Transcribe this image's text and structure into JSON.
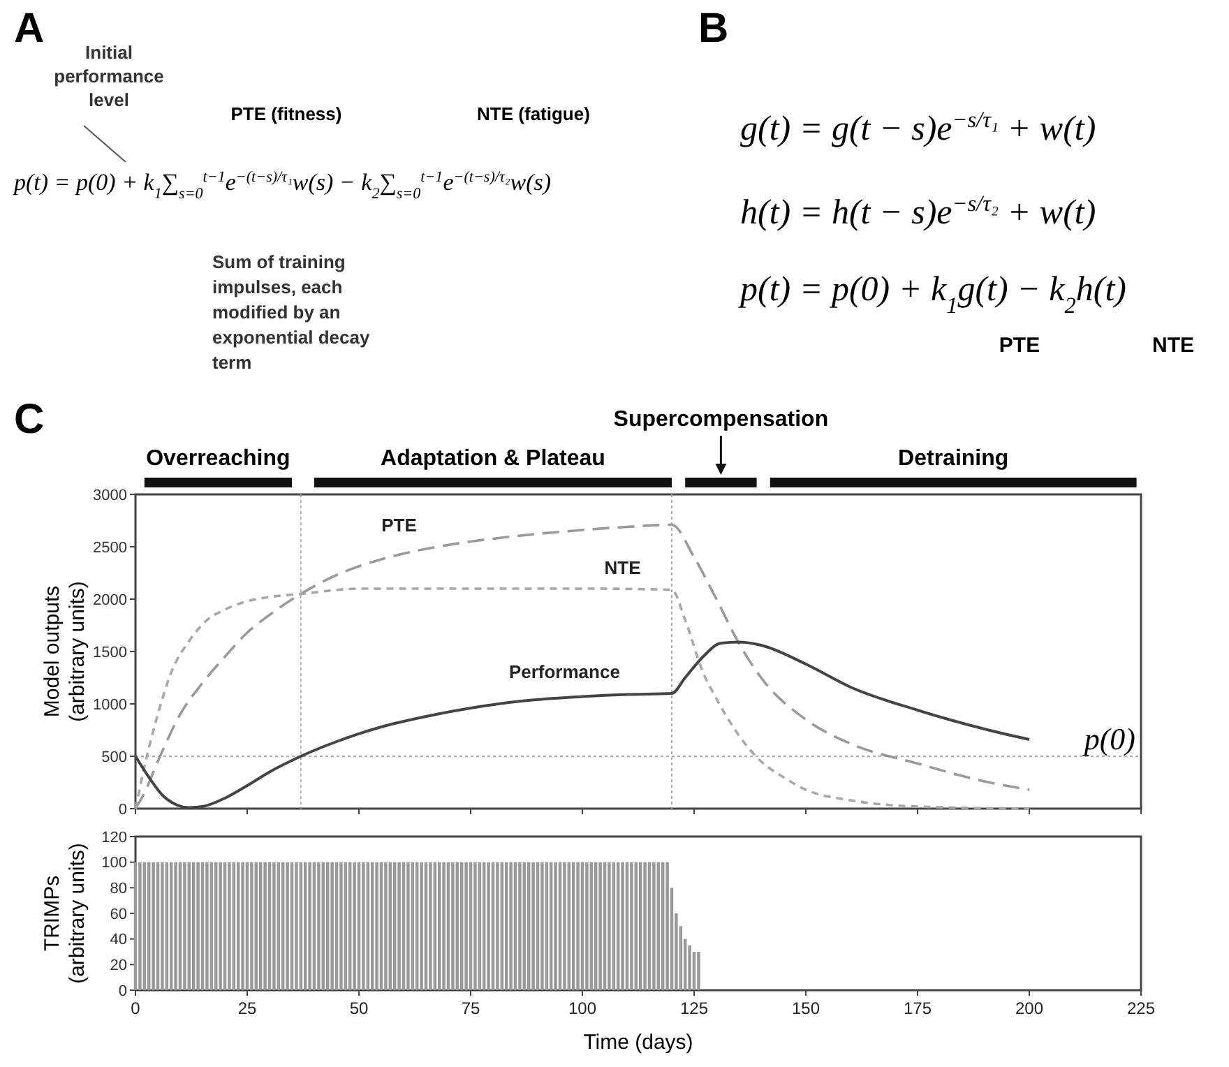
{
  "chart_data": [
    {
      "type": "other",
      "title": "A",
      "annotations": [
        "Initial performance level",
        "PTE (fitness)",
        "NTE (fatigue)",
        "p(t) = p(0) + k$_{1}$∑$_{s=0}$$^{t−1}$e$^{−(t−s)/τ₁}$w(s) − k$_{2}$∑$_{s=0}$$^{t−1}$e$^{−(t−s)/τ₂}$w(s)",
        "Sum of training impulses, each modified by an exponential decay term"
      ]
    },
    {
      "type": "other",
      "title": "B",
      "annotations": [
        "g(t) = g(t − s)e$^{−s/τ₁}$ + w(t)",
        "h(t) = h(t − s)e$^{−s/τ₂}$ + w(t)",
        "p(t) = p(0) + k$_{1}$g(t) − k$_{2}$h(t)",
        "PTE",
        "NTE"
      ]
    },
    {
      "type": "line",
      "title": "C",
      "ylabel": "Model outputs (arbitrary units)",
      "xlim": [
        0,
        225
      ],
      "xticks": [
        0,
        25,
        50,
        75,
        100,
        125,
        150,
        175,
        200,
        225
      ],
      "ylim": [
        0,
        3000
      ],
      "yticks": [
        0,
        500,
        1000,
        1500,
        2000,
        2500,
        3000
      ],
      "tick_labels": "y",
      "grid": false,
      "marker": "none",
      "annotations": [
        "Overreaching",
        "Adaptation & Plateau",
        "Supercompensation",
        "Detraining"
      ],
      "series": [
        {
          "name": "PTE",
          "color": "#9a9a9a",
          "line_style": "dashed",
          "x": [
            0,
            2,
            5,
            10,
            15,
            20,
            25,
            30,
            37,
            45,
            55,
            65,
            75,
            87,
            100,
            110,
            120,
            125,
            130,
            135,
            140,
            150,
            160,
            175,
            190,
            200
          ],
          "values": [
            0,
            150,
            450,
            900,
            1200,
            1450,
            1680,
            1850,
            2050,
            2230,
            2380,
            2480,
            2550,
            2610,
            2660,
            2690,
            2710,
            2400,
            2000,
            1580,
            1250,
            850,
            620,
            430,
            260,
            180
          ]
        },
        {
          "name": "NTE",
          "color": "#a8a8a8",
          "line_style": "dotted",
          "x": [
            0,
            2,
            5,
            8,
            12,
            16,
            20,
            25,
            30,
            37,
            50,
            75,
            100,
            120,
            123,
            127,
            130,
            135,
            140,
            145,
            150,
            160,
            175,
            200
          ],
          "values": [
            0,
            400,
            900,
            1300,
            1600,
            1800,
            1900,
            1980,
            2020,
            2050,
            2100,
            2100,
            2100,
            2090,
            1800,
            1300,
            1050,
            700,
            450,
            300,
            180,
            80,
            20,
            0
          ]
        },
        {
          "name": "Performance",
          "color": "#444444",
          "line_style": "solid",
          "x": [
            0,
            3,
            6,
            9,
            12,
            15,
            20,
            25,
            30,
            37,
            45,
            55,
            65,
            75,
            87,
            100,
            110,
            120,
            123,
            127,
            131,
            135,
            140,
            150,
            160,
            175,
            190,
            200
          ],
          "values": [
            500,
            300,
            130,
            40,
            10,
            20,
            100,
            220,
            350,
            500,
            640,
            780,
            880,
            960,
            1030,
            1070,
            1090,
            1100,
            1250,
            1450,
            1580,
            1590,
            1560,
            1380,
            1160,
            940,
            760,
            660
          ]
        }
      ],
      "ref_lines": [
        {
          "axis": "x",
          "value": 37,
          "color": "#aaaaaa",
          "line_style": "dotted"
        },
        {
          "axis": "x",
          "value": 120,
          "color": "#aaaaaa",
          "line_style": "dotted"
        },
        {
          "axis": "y",
          "value": 500,
          "label": "p(0)",
          "color": "#aaaaaa",
          "line_style": "dotted"
        }
      ]
    },
    {
      "type": "bar",
      "xlabel": "Time (days)",
      "ylabel": "TRIMPs (arbitrary units)",
      "color": "#999999",
      "grid": false,
      "x": [
        0,
        1,
        2,
        3,
        4,
        5,
        6,
        7,
        8,
        9,
        10,
        11,
        12,
        13,
        14,
        15,
        16,
        17,
        18,
        19,
        20,
        21,
        22,
        23,
        24,
        25,
        26,
        27,
        28,
        29,
        30,
        31,
        32,
        33,
        34,
        35,
        36,
        37,
        38,
        39,
        40,
        41,
        42,
        43,
        44,
        45,
        46,
        47,
        48,
        49,
        50,
        51,
        52,
        53,
        54,
        55,
        56,
        57,
        58,
        59,
        60,
        61,
        62,
        63,
        64,
        65,
        66,
        67,
        68,
        69,
        70,
        71,
        72,
        73,
        74,
        75,
        76,
        77,
        78,
        79,
        80,
        81,
        82,
        83,
        84,
        85,
        86,
        87,
        88,
        89,
        90,
        91,
        92,
        93,
        94,
        95,
        96,
        97,
        98,
        99,
        100,
        101,
        102,
        103,
        104,
        105,
        106,
        107,
        108,
        109,
        110,
        111,
        112,
        113,
        114,
        115,
        116,
        117,
        118,
        119,
        120,
        121,
        122,
        123,
        124,
        125,
        126
      ],
      "values": [
        100,
        100,
        100,
        100,
        100,
        100,
        100,
        100,
        100,
        100,
        100,
        100,
        100,
        100,
        100,
        100,
        100,
        100,
        100,
        100,
        100,
        100,
        100,
        100,
        100,
        100,
        100,
        100,
        100,
        100,
        100,
        100,
        100,
        100,
        100,
        100,
        100,
        100,
        100,
        100,
        100,
        100,
        100,
        100,
        100,
        100,
        100,
        100,
        100,
        100,
        100,
        100,
        100,
        100,
        100,
        100,
        100,
        100,
        100,
        100,
        100,
        100,
        100,
        100,
        100,
        100,
        100,
        100,
        100,
        100,
        100,
        100,
        100,
        100,
        100,
        100,
        100,
        100,
        100,
        100,
        100,
        100,
        100,
        100,
        100,
        100,
        100,
        100,
        100,
        100,
        100,
        100,
        100,
        100,
        100,
        100,
        100,
        100,
        100,
        100,
        100,
        100,
        100,
        100,
        100,
        100,
        100,
        100,
        100,
        100,
        100,
        100,
        100,
        100,
        100,
        100,
        100,
        100,
        100,
        100,
        80,
        60,
        50,
        40,
        35,
        30,
        30
      ],
      "xlim": [
        0,
        225
      ],
      "xticks": [
        0,
        25,
        50,
        75,
        100,
        125,
        150,
        175,
        200,
        225
      ],
      "ylim": [
        0,
        120
      ],
      "yticks": [
        0,
        20,
        40,
        60,
        80,
        100,
        120
      ]
    }
  ]
}
